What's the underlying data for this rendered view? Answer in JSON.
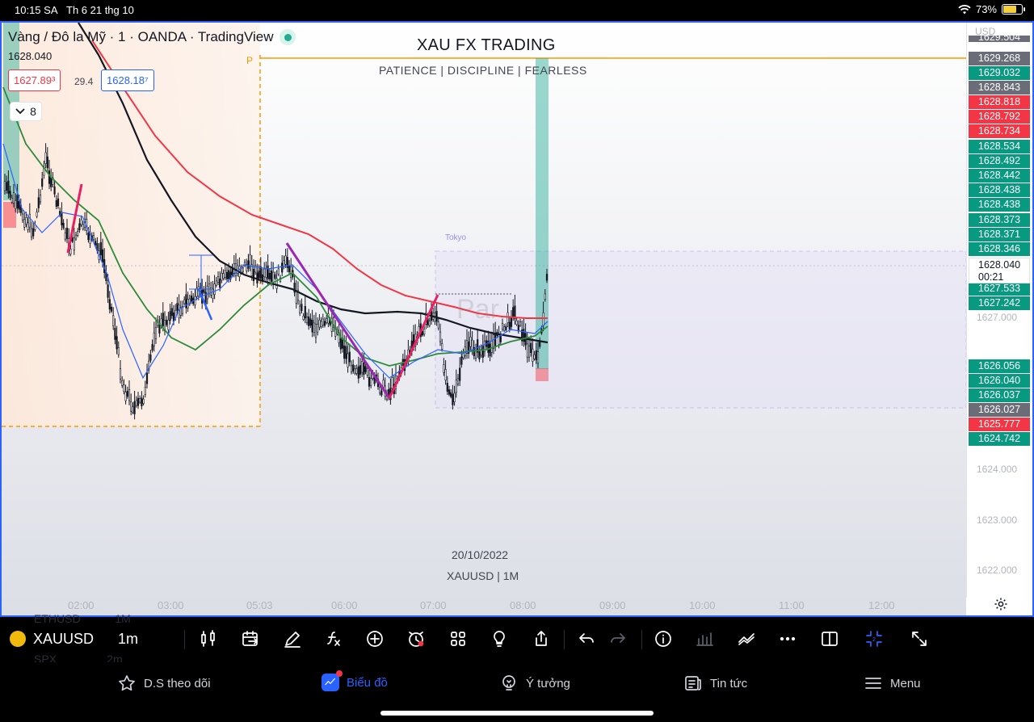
{
  "status_bar": {
    "time": "10:15 SA",
    "date": "Th 6 21 thg 10",
    "battery": "73%",
    "battery_level": 0.73
  },
  "chart": {
    "legend": {
      "title": "Vàng / Đô la Mỹ · 1 · OANDA · TradingView",
      "price": "1628.040",
      "bid": "1627.89³",
      "spread": "29.4",
      "ask": "1628.18⁷",
      "collapse_count": "8"
    },
    "overlay": {
      "title": "XAU FX TRADING",
      "subtitle": "PATIENCE  |  DISCIPLINE  |  FEARLESS",
      "date": "20/10/2022",
      "symbol": "XAUUSD | 1M",
      "p_label": "P",
      "session_label": "Tokyo",
      "watermark": "Par"
    },
    "price_scale": {
      "currency": "USD",
      "labels": [
        {
          "text": "1629.504",
          "kind": "gr"
        },
        {
          "text": "1629.268",
          "kind": "gr"
        },
        {
          "text": "1629.032",
          "kind": "g"
        },
        {
          "text": "1628.843",
          "kind": "gr"
        },
        {
          "text": "1628.818",
          "kind": "r"
        },
        {
          "text": "1628.792",
          "kind": "r"
        },
        {
          "text": "1628.734",
          "kind": "r"
        },
        {
          "text": "1628.534",
          "kind": "g"
        },
        {
          "text": "1628.492",
          "kind": "g"
        },
        {
          "text": "1628.442",
          "kind": "g"
        },
        {
          "text": "1628.438",
          "kind": "g"
        },
        {
          "text": "1628.438",
          "kind": "g"
        },
        {
          "text": "1628.373",
          "kind": "g"
        },
        {
          "text": "1628.371",
          "kind": "g"
        },
        {
          "text": "1628.346",
          "kind": "g"
        },
        {
          "text": "1627.533",
          "kind": "g"
        },
        {
          "text": "1627.242",
          "kind": "g"
        },
        {
          "text": "1626.056",
          "kind": "g"
        },
        {
          "text": "1626.040",
          "kind": "g"
        },
        {
          "text": "1626.037",
          "kind": "g"
        },
        {
          "text": "1626.027",
          "kind": "gr"
        },
        {
          "text": "1625.777",
          "kind": "r"
        },
        {
          "text": "1624.742",
          "kind": "g"
        }
      ],
      "current": {
        "price": "1628.040",
        "countdown": "00:21"
      },
      "ticks": [
        "1627.000",
        "1624.000",
        "1623.000",
        "1622.000"
      ]
    },
    "time_axis": [
      "02:00",
      "03:00",
      "05:03",
      "06:00",
      "07:00",
      "08:00",
      "09:00",
      "10:00",
      "11:00",
      "12:00"
    ]
  },
  "chart_data": {
    "type": "candlestick",
    "symbol": "XAUUSD",
    "interval": "1",
    "x_range": [
      "01:30",
      "08:13"
    ],
    "y_range": [
      1621.5,
      1629.5
    ],
    "series_overlays": [
      "moving-average-black",
      "moving-average-red",
      "moving-average-green",
      "moving-average-blue"
    ]
  },
  "toolbar": {
    "symbol": "XAUUSD",
    "interval": "1m",
    "ghost_above": "ETHUSD",
    "ghost_above_interval": "1M",
    "ghost_below": "SPX",
    "ghost_below_interval": "2m"
  },
  "bottom_nav": {
    "items": [
      {
        "label": "D.S theo dõi",
        "icon": "star-icon"
      },
      {
        "label": "Biểu đồ",
        "icon": "chart-icon"
      },
      {
        "label": "Ý tưởng",
        "icon": "lightbulb-icon"
      },
      {
        "label": "Tin tức",
        "icon": "news-icon"
      },
      {
        "label": "Menu",
        "icon": "hamburger-icon"
      }
    ]
  }
}
